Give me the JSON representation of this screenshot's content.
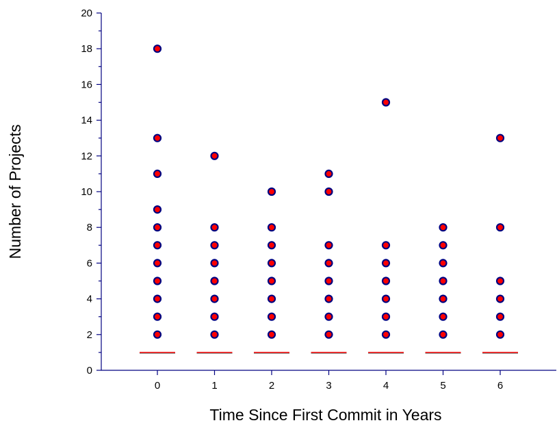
{
  "chart_data": {
    "type": "scatter",
    "title": "",
    "xlabel": "Time Since First Commit in Years",
    "ylabel": "Number of Projects",
    "xlim": [
      -1,
      7
    ],
    "ylim": [
      0,
      20
    ],
    "x_ticks": [
      0,
      1,
      2,
      3,
      4,
      5,
      6
    ],
    "x_tick_labels": [
      "0",
      "1",
      "2",
      "3",
      "4",
      "5",
      "6"
    ],
    "y_ticks": [
      0,
      2,
      4,
      6,
      8,
      10,
      12,
      14,
      16,
      18,
      20
    ],
    "y_tick_labels": [
      "0",
      "2",
      "4",
      "6",
      "8",
      "10",
      "12",
      "14",
      "16",
      "18",
      "20"
    ],
    "grid": false,
    "legend": false,
    "colors": {
      "axis": "#000080",
      "point_fill": "#ff0000",
      "point_stroke": "#000080",
      "median": "#ff0000"
    },
    "groups": [
      {
        "x": 0,
        "values": [
          2,
          3,
          4,
          5,
          6,
          7,
          8,
          9,
          11,
          13,
          18
        ],
        "median": 1
      },
      {
        "x": 1,
        "values": [
          2,
          3,
          4,
          5,
          6,
          7,
          8,
          12
        ],
        "median": 1
      },
      {
        "x": 2,
        "values": [
          2,
          3,
          4,
          5,
          6,
          7,
          8,
          10
        ],
        "median": 1
      },
      {
        "x": 3,
        "values": [
          2,
          3,
          4,
          5,
          6,
          7,
          10,
          11
        ],
        "median": 1
      },
      {
        "x": 4,
        "values": [
          2,
          3,
          4,
          5,
          6,
          7,
          15
        ],
        "median": 1
      },
      {
        "x": 5,
        "values": [
          2,
          3,
          4,
          5,
          6,
          7,
          8
        ],
        "median": 1
      },
      {
        "x": 6,
        "values": [
          2,
          3,
          4,
          5,
          8,
          13
        ],
        "median": 1
      }
    ]
  }
}
